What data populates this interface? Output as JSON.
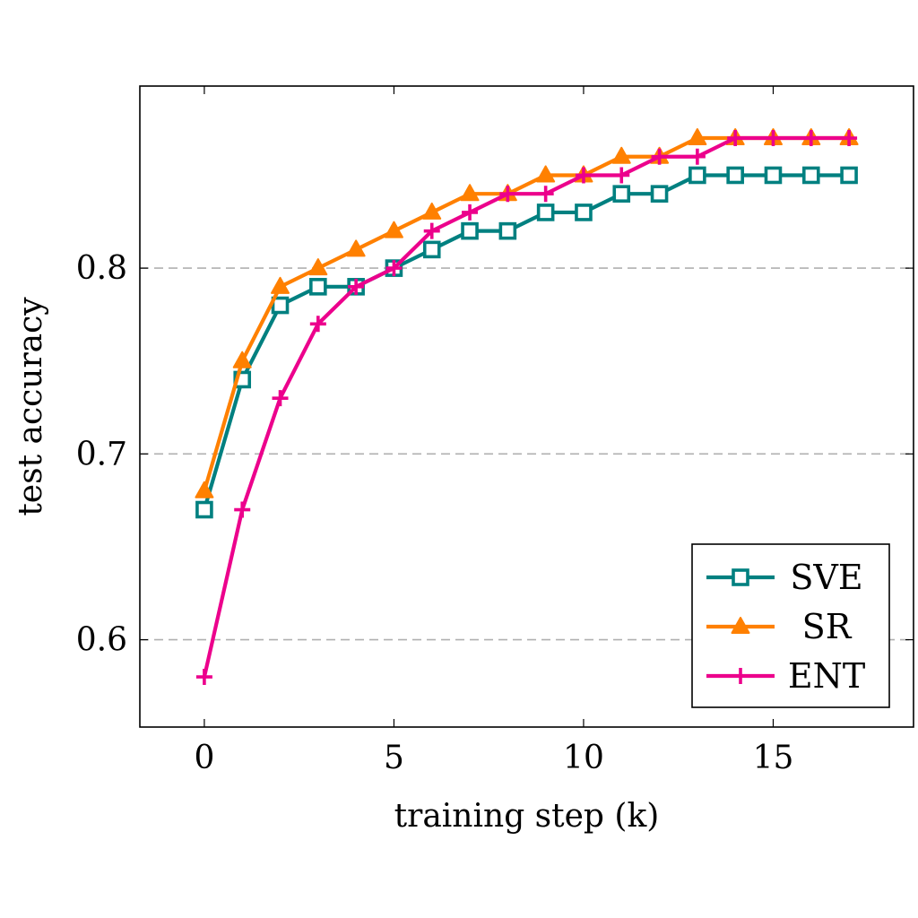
{
  "chart_data": {
    "type": "line",
    "title": "",
    "xlabel": "training step (k)",
    "ylabel": "test accuracy",
    "xlim": [
      -1.7,
      18.7
    ],
    "ylim": [
      0.553,
      0.898
    ],
    "x_ticks": [
      0,
      5,
      10,
      15
    ],
    "x_tick_labels": [
      "0",
      "5",
      "10",
      "15"
    ],
    "y_ticks": [
      0.6,
      0.7,
      0.8
    ],
    "y_tick_labels": [
      "0.6",
      "0.7",
      "0.8"
    ],
    "grid": "horizontal dashed",
    "legend_position": "bottom-right",
    "x": [
      0,
      1,
      2,
      3,
      4,
      5,
      6,
      7,
      8,
      9,
      10,
      11,
      12,
      13,
      14,
      15,
      16,
      17
    ],
    "series": [
      {
        "name": "SVE",
        "color": "#008080",
        "marker": "square",
        "values": [
          0.67,
          0.74,
          0.78,
          0.79,
          0.79,
          0.8,
          0.81,
          0.82,
          0.82,
          0.83,
          0.83,
          0.84,
          0.84,
          0.85,
          0.85,
          0.85,
          0.85,
          0.85
        ]
      },
      {
        "name": "SR",
        "color": "#ff8000",
        "marker": "triangle",
        "values": [
          0.68,
          0.75,
          0.79,
          0.8,
          0.81,
          0.82,
          0.83,
          0.84,
          0.84,
          0.85,
          0.85,
          0.86,
          0.86,
          0.87,
          0.87,
          0.87,
          0.87,
          0.87
        ]
      },
      {
        "name": "ENT",
        "color": "#ec008c",
        "marker": "plus",
        "values": [
          0.58,
          0.67,
          0.73,
          0.77,
          0.79,
          0.8,
          0.82,
          0.83,
          0.84,
          0.84,
          0.85,
          0.85,
          0.86,
          0.86,
          0.87,
          0.87,
          0.87,
          0.87
        ]
      }
    ]
  }
}
